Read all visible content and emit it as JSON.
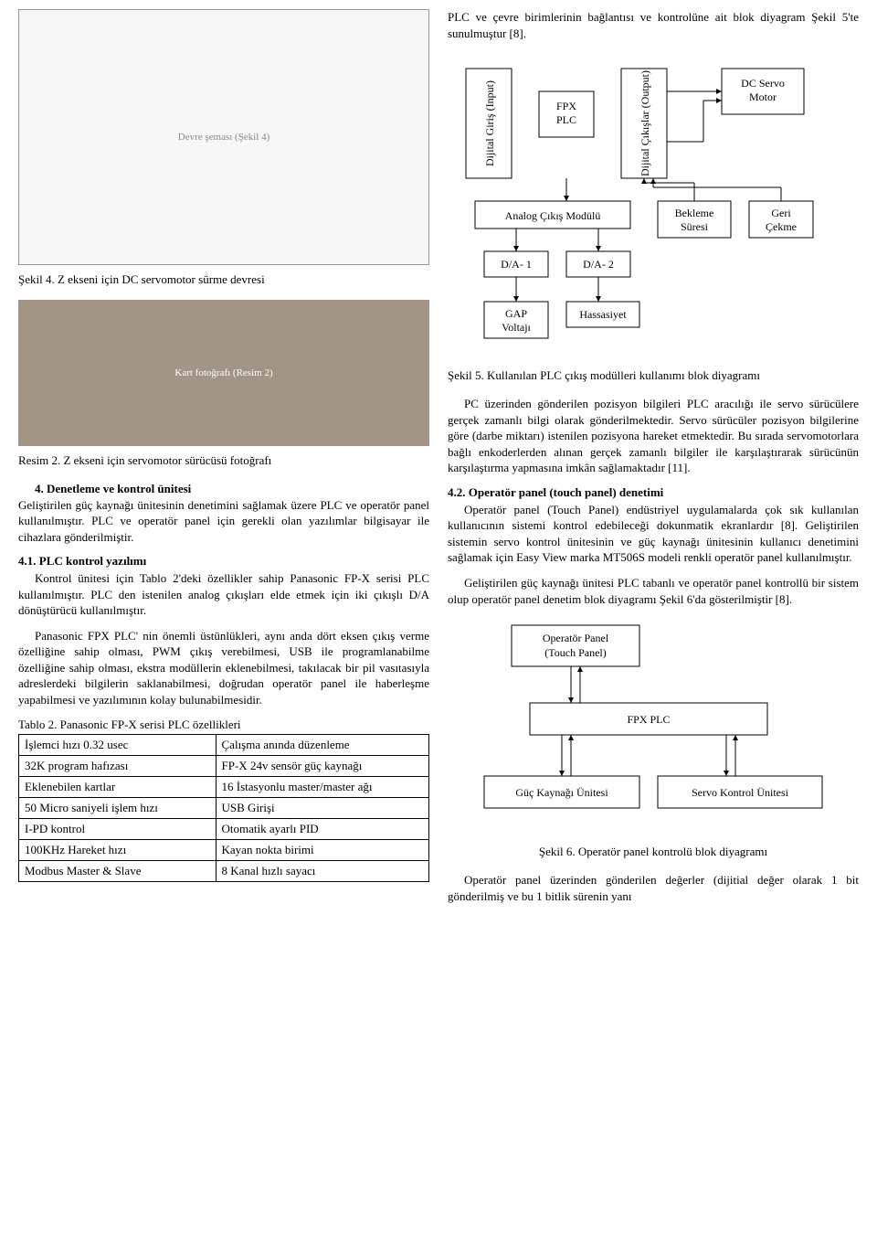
{
  "leftCol": {
    "circuitPlaceholder": "Devre şeması (Şekil 4)",
    "caption4": "Şekil 4. Z ekseni için DC servomotor sürme devresi",
    "photoPlaceholder": "Kart fotoğrafı (Resim 2)",
    "caption2": "Resim 2. Z ekseni için servomotor sürücüsü fotoğrafı",
    "h4": "4. Denetleme ve kontrol ünitesi",
    "p4": "Geliştirilen güç kaynağı ünitesinin denetimini sağlamak üzere PLC ve operatör panel kullanılmıştır. PLC ve operatör panel için gerekli olan yazılımlar bilgisayar ile cihazlara gönderilmiştir.",
    "h41": "4.1. PLC kontrol yazılımı",
    "p41a": "Kontrol ünitesi için Tablo 2'deki özellikler sahip Panasonic FP-X serisi PLC kullanılmıştır. PLC den istenilen analog çıkışları elde etmek için iki çıkışlı D/A dönüştürücü kullanılmıştır.",
    "p41b": "Panasonic FPX PLC' nin önemli üstünlükleri, aynı anda dört eksen çıkış verme özelliğine sahip olması, PWM çıkış verebilmesi, USB ile programlanabilme özelliğine sahip olması, ekstra modüllerin eklenebilmesi, takılacak bir pil vasıtasıyla adreslerdeki bilgilerin saklanabilmesi, doğrudan operatör panel ile haberleşme yapabilmesi ve yazılımının kolay bulunabilmesidir.",
    "tableTitle": "Tablo 2. Panasonic FP-X serisi PLC özellikleri",
    "table": {
      "rows": [
        [
          "İşlemci hızı 0.32 usec",
          "Çalışma anında düzenleme"
        ],
        [
          "32K program hafızası",
          "FP-X 24v sensör güç kaynağı"
        ],
        [
          "Eklenebilen kartlar",
          "16 İstasyonlu master/master ağı"
        ],
        [
          "50 Micro saniyeli işlem hızı",
          "USB Girişi"
        ],
        [
          "I-PD kontrol",
          "Otomatik ayarlı PID"
        ],
        [
          "100KHz Hareket hızı",
          "Kayan nokta birimi"
        ],
        [
          "Modbus Master & Slave",
          "8 Kanal hızlı sayacı"
        ]
      ],
      "col1_width": "48%",
      "col2_width": "52%"
    }
  },
  "rightCol": {
    "p_intro": "PLC ve çevre birimlerinin bağlantısı ve kontrolüne ait blok diyagram Şekil 5'te sunulmuştur [8].",
    "diag1": {
      "b_input": "Dijital Giriş (Input)",
      "b_fpx": "FPX PLC",
      "b_output": "Dijital Çıkışlar (Output)",
      "b_dc": "DC Servo Motor",
      "b_analog": "Analog Çıkış Modülü",
      "b_bekleme": "Bekleme Süresi",
      "b_geri": "Geri Çekme",
      "b_da1": "D/A- 1",
      "b_da2": "D/A- 2",
      "b_gap1": "GAP",
      "b_gap2": "Voltajı",
      "b_has": "Hassasiyet"
    },
    "caption5": "Şekil 5. Kullanılan PLC çıkış modülleri kullanımı blok diyagramı",
    "p_pc": "PC üzerinden gönderilen pozisyon bilgileri PLC aracılığı ile servo sürücülere gerçek zamanlı bilgi olarak gönderilmektedir. Servo sürücüler pozisyon bilgilerine göre (darbe miktarı) istenilen pozisyona hareket etmektedir. Bu sırada servomotorlara bağlı enkoderlerden alınan gerçek zamanlı bilgiler ile karşılaştırarak sürücünün karşılaştırma yapmasına imkân sağlamaktadır [11].",
    "h42": "4.2. Operatör panel (touch panel) denetimi",
    "p42a": "Operatör panel (Touch Panel) endüstriyel uygulamalarda çok sık kullanılan kullanıcının sistemi kontrol edebileceği dokunmatik ekranlardır [8]. Geliştirilen sistemin servo kontrol ünitesinin ve güç kaynağı ünitesinin kullanıcı denetimini sağlamak için Easy View marka MT506S modeli renkli operatör panel kullanılmıştır.",
    "p42b": "Geliştirilen güç kaynağı ünitesi PLC tabanlı ve operatör panel kontrollü bir sistem olup operatör panel denetim blok diyagramı Şekil 6'da gösterilmiştir [8].",
    "diag2": {
      "b_op1": "Operatör Panel",
      "b_op2": "(Touch Panel)",
      "b_fpx": "FPX PLC",
      "b_guc": "Güç Kaynağı Ünitesi",
      "b_servo": "Servo Kontrol Ünitesi"
    },
    "caption6": "Şekil 6. Operatör panel kontrolü blok diyagramı",
    "p_last": "Operatör panel üzerinden gönderilen değerler (dijitial değer olarak 1 bit gönderilmiş ve bu 1 bitlik sürenin yanı"
  }
}
